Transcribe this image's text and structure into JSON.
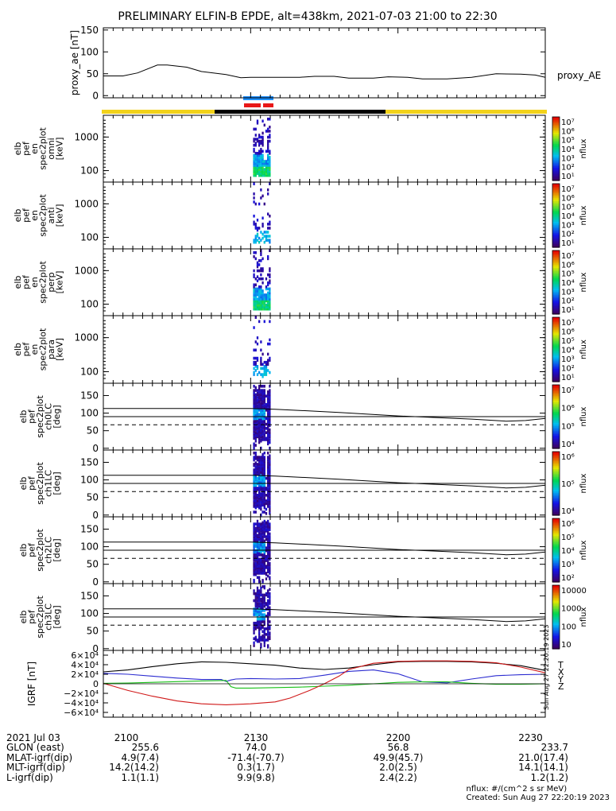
{
  "title": "PRELIMINARY ELFIN-B EPDE, alt=438km, 2021-07-03 21:00 to 22:30",
  "colors": {
    "ae_line": "#000000",
    "fgm_x": "#2b2bd0",
    "fgm_y": "#18c018",
    "fgm_z": "#d01818",
    "fgm_total": "#000000",
    "phase_yellow": "#f2d21a",
    "phase_black": "#000000",
    "sci_blue": "#1e90ff",
    "sci_red": "#e81818"
  },
  "chart_data": [
    {
      "type": "line",
      "name": "proxy_ae",
      "ylabel": "proxy_ae [nT]",
      "legend": "proxy_AE",
      "ylim": [
        -5,
        155
      ],
      "yticks": [
        "0",
        "50",
        "100",
        "150"
      ],
      "xlim": [
        0,
        90
      ],
      "x": [
        0,
        4,
        7,
        11,
        13,
        17,
        20,
        25,
        28,
        30,
        35,
        40,
        43,
        47,
        50,
        55,
        58,
        62,
        65,
        70,
        75,
        80,
        85,
        88,
        90
      ],
      "y": [
        45,
        45,
        52,
        70,
        70,
        65,
        55,
        48,
        41,
        42,
        42,
        42,
        44,
        44,
        40,
        40,
        43,
        42,
        38,
        38,
        42,
        50,
        49,
        47,
        42
      ]
    },
    {
      "type": "heatmap",
      "name": "elb_pef_en_spec2plot_omni",
      "ylabel_lines": [
        "elb",
        "pef",
        "en",
        "spec2plot",
        "omni",
        "[keV]"
      ],
      "yticks": [
        "100",
        "1000"
      ],
      "colorbar": {
        "label": "nflux",
        "ticks": [
          "10¹",
          "10²",
          "10³",
          "10⁴",
          "10⁵",
          "10⁶",
          "10⁷"
        ]
      },
      "x_range": [
        30.5,
        34
      ]
    },
    {
      "type": "heatmap",
      "name": "elb_pef_en_spec2plot_anti",
      "ylabel_lines": [
        "elb",
        "pef",
        "en",
        "spec2plot",
        "anti",
        "[keV]"
      ],
      "yticks": [
        "100",
        "1000"
      ],
      "colorbar": {
        "label": "nflux",
        "ticks": [
          "10¹",
          "10²",
          "10³",
          "10⁴",
          "10⁵",
          "10⁶",
          "10⁷"
        ]
      },
      "x_range": [
        30.5,
        34
      ]
    },
    {
      "type": "heatmap",
      "name": "elb_pef_en_spec2plot_perp",
      "ylabel_lines": [
        "elb",
        "pef",
        "en",
        "spec2plot",
        "perp",
        "[keV]"
      ],
      "yticks": [
        "100",
        "1000"
      ],
      "colorbar": {
        "label": "nflux",
        "ticks": [
          "10¹",
          "10²",
          "10³",
          "10⁴",
          "10⁵",
          "10⁶",
          "10⁷"
        ]
      },
      "x_range": [
        30.5,
        34
      ]
    },
    {
      "type": "heatmap",
      "name": "elb_pef_en_spec2plot_para",
      "ylabel_lines": [
        "elb",
        "pef",
        "en",
        "spec2plot",
        "para",
        "[keV]"
      ],
      "yticks": [
        "100",
        "1000"
      ],
      "colorbar": {
        "label": "nflux",
        "ticks": [
          "10¹",
          "10²",
          "10³",
          "10⁴",
          "10⁵",
          "10⁶",
          "10⁷"
        ]
      },
      "x_range": [
        30.5,
        34
      ]
    },
    {
      "type": "heatmap",
      "name": "elb_pef_pa_spec2plot_ch0LC",
      "ylabel_lines": [
        "elb",
        "pef",
        "spec2plot",
        "ch0LC",
        "[deg]"
      ],
      "yticks": [
        "0",
        "50",
        "100",
        "150"
      ],
      "ylim": [
        -5,
        185
      ],
      "colorbar": {
        "label": "nflux",
        "ticks": [
          "10⁴",
          "10⁵",
          "10⁶",
          "10⁷"
        ]
      },
      "x_range": [
        30.5,
        34
      ],
      "lc_solid_upper": [
        [
          0,
          113
        ],
        [
          30,
          113
        ],
        [
          35,
          111
        ],
        [
          48,
          102
        ],
        [
          60,
          92
        ],
        [
          75,
          83
        ],
        [
          82,
          77
        ],
        [
          86,
          79
        ],
        [
          90,
          85
        ]
      ],
      "lc_solid_lower": [
        [
          0,
          90
        ],
        [
          90,
          90
        ]
      ],
      "lc_dashed": [
        [
          0,
          67
        ],
        [
          90,
          67
        ]
      ]
    },
    {
      "type": "heatmap",
      "name": "elb_pef_pa_spec2plot_ch1LC",
      "ylabel_lines": [
        "elb",
        "pef",
        "spec2plot",
        "ch1LC",
        "[deg]"
      ],
      "yticks": [
        "0",
        "50",
        "100",
        "150"
      ],
      "ylim": [
        -5,
        185
      ],
      "colorbar": {
        "label": "nflux",
        "ticks": [
          "10⁴",
          "10⁵",
          "10⁶"
        ]
      },
      "x_range": [
        30.5,
        34
      ],
      "lc_solid_upper": [
        [
          0,
          113
        ],
        [
          30,
          113
        ],
        [
          35,
          111
        ],
        [
          48,
          102
        ],
        [
          60,
          92
        ],
        [
          75,
          83
        ],
        [
          82,
          77
        ],
        [
          86,
          79
        ],
        [
          90,
          85
        ]
      ],
      "lc_solid_lower": [
        [
          0,
          90
        ],
        [
          90,
          90
        ]
      ],
      "lc_dashed": [
        [
          0,
          67
        ],
        [
          90,
          67
        ]
      ]
    },
    {
      "type": "heatmap",
      "name": "elb_pef_pa_spec2plot_ch2LC",
      "ylabel_lines": [
        "elb",
        "pef",
        "spec2plot",
        "ch2LC",
        "[deg]"
      ],
      "yticks": [
        "0",
        "50",
        "100",
        "150"
      ],
      "ylim": [
        -5,
        185
      ],
      "colorbar": {
        "label": "nflux",
        "ticks": [
          "10²",
          "10³",
          "10⁴",
          "10⁵",
          "10⁶"
        ]
      },
      "x_range": [
        30.5,
        34
      ],
      "lc_solid_upper": [
        [
          0,
          113
        ],
        [
          30,
          113
        ],
        [
          35,
          111
        ],
        [
          48,
          102
        ],
        [
          60,
          92
        ],
        [
          75,
          83
        ],
        [
          82,
          77
        ],
        [
          86,
          79
        ],
        [
          90,
          85
        ]
      ],
      "lc_solid_lower": [
        [
          0,
          90
        ],
        [
          90,
          90
        ]
      ],
      "lc_dashed": [
        [
          0,
          67
        ],
        [
          90,
          67
        ]
      ]
    },
    {
      "type": "heatmap",
      "name": "elb_pef_pa_spec2plot_ch3LC",
      "ylabel_lines": [
        "elb",
        "pef",
        "spec2plot",
        "ch3LC",
        "[deg]"
      ],
      "yticks": [
        "0",
        "50",
        "100",
        "150"
      ],
      "ylim": [
        -5,
        185
      ],
      "colorbar": {
        "label": "nflux",
        "ticks": [
          "10",
          "100",
          "1000",
          "10000"
        ]
      },
      "x_range": [
        30.5,
        34
      ],
      "lc_solid_upper": [
        [
          0,
          113
        ],
        [
          30,
          113
        ],
        [
          35,
          111
        ],
        [
          48,
          102
        ],
        [
          60,
          92
        ],
        [
          75,
          83
        ],
        [
          82,
          77
        ],
        [
          86,
          79
        ],
        [
          90,
          85
        ]
      ],
      "lc_solid_lower": [
        [
          0,
          90
        ],
        [
          90,
          90
        ]
      ],
      "lc_dashed": [
        [
          0,
          67
        ],
        [
          90,
          67
        ]
      ]
    },
    {
      "type": "line",
      "name": "igrf",
      "ylabel": "IGRF [nT]",
      "ylim": [
        -70000,
        70000
      ],
      "yticks": [
        "6×10⁴",
        "4×10⁴",
        "2×10⁴",
        "0",
        "−2×10⁴",
        "−4×10⁴",
        "−6×10⁴"
      ],
      "ytick_values": [
        60000,
        40000,
        20000,
        0,
        -20000,
        -40000,
        -60000
      ],
      "legend": [
        "T",
        "X",
        "Y",
        "Z"
      ],
      "series": [
        {
          "name": "T",
          "x": [
            0,
            5,
            10,
            15,
            20,
            25,
            30,
            35,
            40,
            45,
            50,
            55,
            60,
            65,
            70,
            75,
            80,
            85,
            90
          ],
          "y": [
            25000,
            29000,
            36000,
            42000,
            46000,
            45000,
            42000,
            39000,
            33000,
            30000,
            33000,
            40000,
            46000,
            47000,
            47000,
            46000,
            43000,
            38000,
            28000
          ]
        },
        {
          "name": "X",
          "x": [
            0,
            5,
            10,
            15,
            20,
            24,
            25,
            26,
            27,
            30,
            35,
            40,
            45,
            50,
            55,
            60,
            65,
            70,
            75,
            80,
            85,
            90
          ],
          "y": [
            22000,
            20000,
            16000,
            12000,
            9000,
            9000,
            5000,
            8000,
            10000,
            11000,
            10000,
            11000,
            18000,
            26000,
            29000,
            21000,
            4000,
            2000,
            10000,
            17000,
            19000,
            20000
          ]
        },
        {
          "name": "Y",
          "x": [
            0,
            5,
            10,
            15,
            20,
            25,
            26,
            27,
            30,
            35,
            40,
            45,
            50,
            55,
            60,
            65,
            70,
            75,
            80,
            85,
            90
          ],
          "y": [
            1000,
            1500,
            3000,
            4500,
            6000,
            7000,
            -6000,
            -9000,
            -9000,
            -8000,
            -7000,
            -5000,
            -3000,
            0,
            3000,
            4000,
            4000,
            1000,
            -1000,
            -1000,
            0
          ]
        },
        {
          "name": "Z",
          "x": [
            0,
            5,
            10,
            15,
            20,
            25,
            30,
            35,
            38,
            42,
            45,
            48,
            50,
            55,
            60,
            65,
            70,
            75,
            80,
            85,
            90
          ],
          "y": [
            1000,
            -14000,
            -26000,
            -36000,
            -42000,
            -44000,
            -42000,
            -38000,
            -30000,
            -14000,
            0,
            16000,
            30000,
            43000,
            47000,
            48000,
            48000,
            47000,
            44000,
            35000,
            23000
          ]
        }
      ]
    }
  ],
  "x_axis": {
    "row_labels": [
      "2021 Jul 03",
      "GLON (east)",
      "MLAT-igrf(dip)",
      "MLT-igrf(dip)",
      "L-igrf(dip)"
    ],
    "columns": [
      {
        "time": "2100",
        "glon": "255.6",
        "mlat": "4.9(7.4)",
        "mlt": "14.2(14.2)",
        "l": "1.1(1.1)"
      },
      {
        "time": "2130",
        "glon": "74.0",
        "mlat": "-71.4(-70.7)",
        "mlt": "0.3(1.7)",
        "l": "9.9(9.8)"
      },
      {
        "time": "2200",
        "glon": "56.8",
        "mlat": "49.9(45.7)",
        "mlt": "2.0(2.5)",
        "l": "2.4(2.2)"
      },
      {
        "time": "2230",
        "glon": "233.7",
        "mlat": "21.0(17.4)",
        "mlt": "14.1(14.1)",
        "l": "1.2(1.2)"
      }
    ]
  },
  "footnote": {
    "units": "nflux: #/(cm^2 s sr MeV)",
    "created": "Created: Sun Aug 27 22:20:19 2023",
    "vertical_stamp": "Sun Aug 27 22:20:19 2023"
  }
}
